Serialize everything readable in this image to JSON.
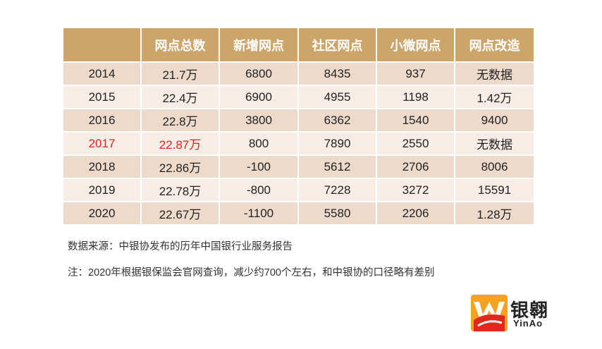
{
  "table": {
    "headers": [
      "",
      "网点总数",
      "新增网点",
      "社区网点",
      "小微网点",
      "网点改造"
    ],
    "rows": [
      [
        "2014",
        "21.7万",
        "6800",
        "8435",
        "937",
        "无数据"
      ],
      [
        "2015",
        "22.4万",
        "6900",
        "4955",
        "1198",
        "1.42万"
      ],
      [
        "2016",
        "22.8万",
        "3800",
        "6362",
        "1540",
        "9400"
      ],
      [
        "2017",
        "22.87万",
        "800",
        "7890",
        "2550",
        "无数据"
      ],
      [
        "2018",
        "22.86万",
        "-100",
        "5612",
        "2706",
        "8006"
      ],
      [
        "2019",
        "22.78万",
        "-800",
        "7228",
        "3272",
        "15591"
      ],
      [
        "2020",
        "22.67万",
        "-1100",
        "5580",
        "2206",
        "1.28万"
      ]
    ],
    "highlight_row": 3,
    "highlight_color": "#e41f1f",
    "header_color": "#cda46a"
  },
  "footer": {
    "source": "数据来源：中银协发布的历年中国银行业服务报告",
    "note": "注：2020年根据银保监会官网查询，减少约700个左右，和中银协的口径略有差别"
  },
  "logo": {
    "cn": "银翱",
    "en": "YinAo",
    "colors": [
      "#f39c1e",
      "#e2271c"
    ]
  }
}
